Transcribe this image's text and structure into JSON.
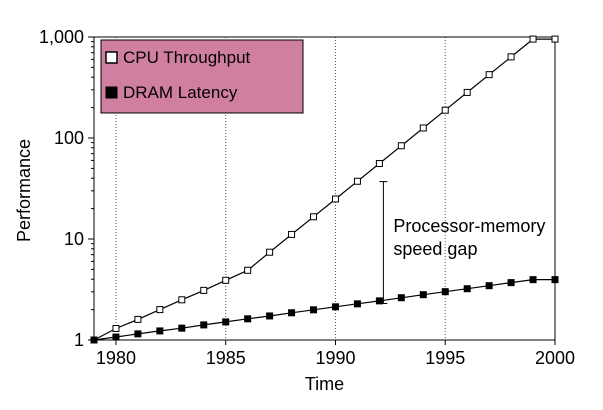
{
  "chart_data": {
    "type": "line",
    "title": "",
    "xlabel": "Time",
    "ylabel": "Performance",
    "xlim": [
      1979,
      2000
    ],
    "ylim": [
      1,
      1000
    ],
    "yscale": "log",
    "x_ticks": [
      1980,
      1985,
      1990,
      1995,
      2000
    ],
    "x_tick_labels": [
      "1980",
      "1985",
      "1990",
      "1995",
      "2000"
    ],
    "y_ticks": [
      1,
      10,
      100,
      1000
    ],
    "y_tick_labels": [
      "1",
      "10",
      "100",
      "1,000"
    ],
    "grid": "vertical dotted lines at 1985, 1990, 1995",
    "legend": {
      "placement": "top-left",
      "background": "#d17fa1",
      "entries": [
        {
          "label": "CPU Throughput",
          "marker": "hollow-square"
        },
        {
          "label": "DRAM Latency",
          "marker": "filled-square"
        }
      ]
    },
    "series": [
      {
        "name": "CPU Throughput",
        "marker": "hollow-square",
        "x": [
          1979,
          1980,
          1981,
          1982,
          1983,
          1984,
          1985,
          1986,
          1987,
          1988,
          1989,
          1990,
          1991,
          1992,
          1993,
          1994,
          1995,
          1996,
          1997,
          1998,
          1999,
          2000
        ],
        "y": [
          1.0,
          1.3,
          1.6,
          2.0,
          2.5,
          3.1,
          3.9,
          4.9,
          7.4,
          11.1,
          16.6,
          24.9,
          37.3,
          55.9,
          83.8,
          125.7,
          188.5,
          282.6,
          423.8,
          635.7,
          953.5,
          953.5
        ]
      },
      {
        "name": "DRAM Latency",
        "marker": "filled-square",
        "x": [
          1979,
          1980,
          1981,
          1982,
          1983,
          1984,
          1985,
          1986,
          1987,
          1988,
          1989,
          1990,
          1991,
          1992,
          1993,
          1994,
          1995,
          1996,
          1997,
          1998,
          1999,
          2000
        ],
        "y": [
          1.0,
          1.07,
          1.15,
          1.23,
          1.31,
          1.41,
          1.51,
          1.62,
          1.73,
          1.86,
          1.99,
          2.13,
          2.28,
          2.44,
          2.62,
          2.81,
          3.01,
          3.22,
          3.45,
          3.7,
          3.96,
          3.96
        ]
      }
    ],
    "annotation": {
      "lines": [
        "Processor-memory",
        "speed gap"
      ],
      "x": 1992,
      "from_y": 2.3,
      "to_y": 37
    }
  }
}
